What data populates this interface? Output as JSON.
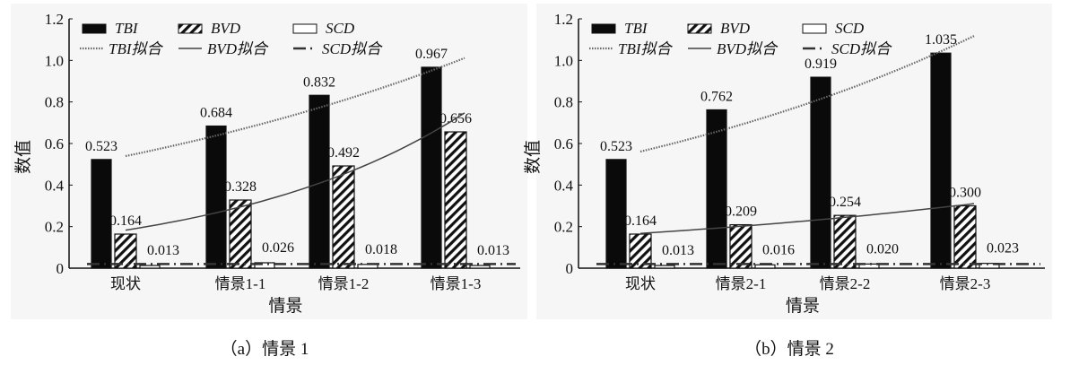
{
  "chart_data": [
    {
      "type": "bar",
      "caption": "（a）情景 1",
      "xlabel": "情景",
      "ylabel": "数值",
      "ylim": [
        0,
        1.2
      ],
      "yticks": [
        "0",
        "0.2",
        "0.4",
        "0.6",
        "0.8",
        "1.0",
        "1.2"
      ],
      "categories": [
        "现状",
        "情景1-1",
        "情景1-2",
        "情景1-3"
      ],
      "series": [
        {
          "name": "TBI",
          "values": [
            0.523,
            0.684,
            0.832,
            0.967
          ],
          "labels": [
            "0.523",
            "0.684",
            "0.832",
            "0.967"
          ]
        },
        {
          "name": "BVD",
          "values": [
            0.164,
            0.328,
            0.492,
            0.656
          ],
          "labels": [
            "0.164",
            "0.328",
            "0.492",
            "0.656"
          ]
        },
        {
          "name": "SCD",
          "values": [
            0.013,
            0.026,
            0.018,
            0.013
          ],
          "labels": [
            "0.013",
            "0.026",
            "0.018",
            "0.013"
          ]
        }
      ],
      "legend": [
        "TBI",
        "BVD",
        "SCD",
        "TBI拟合",
        "BVD拟合",
        "SCD拟合"
      ],
      "legend_position": "top-left"
    },
    {
      "type": "bar",
      "caption": "（b）情景 2",
      "xlabel": "情景",
      "ylabel": "数值",
      "ylim": [
        0,
        1.2
      ],
      "yticks": [
        "0",
        "0.2",
        "0.4",
        "0.6",
        "0.8",
        "1.0",
        "1.2"
      ],
      "categories": [
        "现状",
        "情景2-1",
        "情景2-2",
        "情景2-3"
      ],
      "series": [
        {
          "name": "TBI",
          "values": [
            0.523,
            0.762,
            0.919,
            1.035
          ],
          "labels": [
            "0.523",
            "0.762",
            "0.919",
            "1.035"
          ]
        },
        {
          "name": "BVD",
          "values": [
            0.164,
            0.209,
            0.254,
            0.3
          ],
          "labels": [
            "0.164",
            "0.209",
            "0.254",
            "0.300"
          ]
        },
        {
          "name": "SCD",
          "values": [
            0.013,
            0.016,
            0.02,
            0.023
          ],
          "labels": [
            "0.013",
            "0.016",
            "0.020",
            "0.023"
          ]
        }
      ],
      "legend": [
        "TBI",
        "BVD",
        "SCD",
        "TBI拟合",
        "BVD拟合",
        "SCD拟合"
      ],
      "legend_position": "top-left"
    }
  ]
}
